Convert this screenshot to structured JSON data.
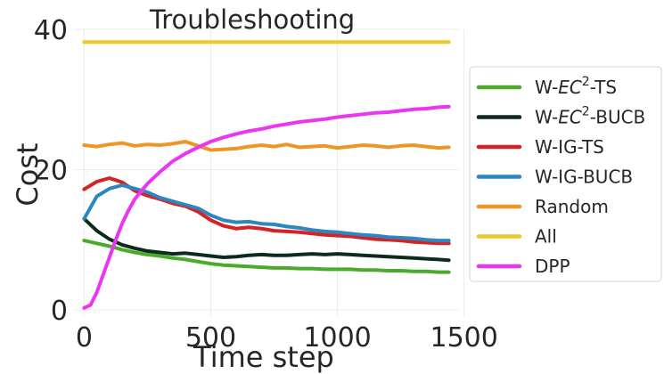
{
  "chart_data": {
    "type": "line",
    "title": "Troubleshooting",
    "xlabel": "Time step",
    "ylabel": "Cost",
    "xlim": [
      -40,
      1480
    ],
    "ylim": [
      -1,
      40
    ],
    "xticks": [
      0,
      500,
      1000,
      1500
    ],
    "yticks": [
      0,
      20,
      40
    ],
    "grid": true,
    "legend_position": "right, outside plot",
    "series": [
      {
        "name": "W-EC2-TS",
        "legend_base": "W-",
        "legend_italic": "EC",
        "legend_sup": "2",
        "legend_suffix": "-TS",
        "color": "#4aaa2a",
        "x": [
          0,
          50,
          100,
          150,
          200,
          250,
          300,
          350,
          400,
          450,
          500,
          550,
          600,
          650,
          700,
          750,
          800,
          850,
          900,
          950,
          1000,
          1050,
          1100,
          1150,
          1200,
          1250,
          1300,
          1350,
          1400,
          1440
        ],
        "y": [
          9.9,
          9.5,
          9.1,
          8.6,
          8.2,
          7.9,
          7.7,
          7.4,
          7.2,
          6.9,
          6.6,
          6.4,
          6.3,
          6.2,
          6.1,
          6.0,
          6.0,
          5.9,
          5.9,
          5.8,
          5.8,
          5.8,
          5.7,
          5.7,
          5.6,
          5.6,
          5.5,
          5.5,
          5.4,
          5.4
        ]
      },
      {
        "name": "W-EC2-BUCB",
        "legend_base": "W-",
        "legend_italic": "EC",
        "legend_sup": "2",
        "legend_suffix": "-BUCB",
        "color": "#0b2b1d",
        "x": [
          0,
          50,
          100,
          150,
          200,
          250,
          300,
          350,
          400,
          450,
          500,
          550,
          600,
          650,
          700,
          750,
          800,
          850,
          900,
          950,
          1000,
          1050,
          1100,
          1150,
          1200,
          1250,
          1300,
          1350,
          1400,
          1440
        ],
        "y": [
          13.0,
          11.3,
          10.1,
          9.3,
          8.8,
          8.4,
          8.2,
          8.0,
          8.1,
          7.9,
          7.7,
          7.5,
          7.6,
          7.8,
          7.9,
          7.8,
          7.8,
          7.9,
          8.0,
          7.9,
          8.0,
          7.9,
          7.8,
          7.7,
          7.6,
          7.5,
          7.4,
          7.3,
          7.2,
          7.1
        ]
      },
      {
        "name": "W-IG-TS",
        "color": "#d62222",
        "x": [
          0,
          50,
          100,
          150,
          200,
          250,
          300,
          350,
          400,
          450,
          500,
          550,
          600,
          650,
          700,
          750,
          800,
          850,
          900,
          950,
          1000,
          1050,
          1100,
          1150,
          1200,
          1250,
          1300,
          1350,
          1400,
          1440
        ],
        "y": [
          17.2,
          18.3,
          18.8,
          18.2,
          17.0,
          16.3,
          15.8,
          15.2,
          14.8,
          14.0,
          12.8,
          12.0,
          11.6,
          11.8,
          11.6,
          11.3,
          11.2,
          11.1,
          10.9,
          10.7,
          10.6,
          10.5,
          10.3,
          10.1,
          10.0,
          9.9,
          9.7,
          9.6,
          9.5,
          9.5
        ]
      },
      {
        "name": "W-IG-BUCB",
        "color": "#2c86c0",
        "x": [
          0,
          50,
          100,
          150,
          200,
          250,
          300,
          350,
          400,
          450,
          500,
          550,
          600,
          650,
          700,
          750,
          800,
          850,
          900,
          950,
          1000,
          1050,
          1100,
          1150,
          1200,
          1250,
          1300,
          1350,
          1400,
          1440
        ],
        "y": [
          13.0,
          16.2,
          17.3,
          17.8,
          17.3,
          16.8,
          16.0,
          15.5,
          15.0,
          14.5,
          13.5,
          12.8,
          12.5,
          12.6,
          12.3,
          12.2,
          11.9,
          11.7,
          11.4,
          11.2,
          11.1,
          10.9,
          10.7,
          10.6,
          10.4,
          10.3,
          10.2,
          10.0,
          9.9,
          9.9
        ]
      },
      {
        "name": "Random",
        "color": "#ef9526",
        "x": [
          0,
          50,
          100,
          150,
          200,
          250,
          300,
          350,
          400,
          450,
          500,
          550,
          600,
          650,
          700,
          750,
          800,
          850,
          900,
          950,
          1000,
          1050,
          1100,
          1150,
          1200,
          1250,
          1300,
          1350,
          1400,
          1440
        ],
        "y": [
          23.5,
          23.3,
          23.6,
          23.8,
          23.4,
          23.6,
          23.5,
          23.7,
          24.0,
          23.4,
          22.8,
          22.9,
          23.0,
          23.3,
          23.5,
          23.3,
          23.6,
          23.2,
          23.3,
          23.4,
          23.1,
          23.3,
          23.5,
          23.4,
          23.2,
          23.4,
          23.5,
          23.3,
          23.1,
          23.2
        ]
      },
      {
        "name": "All",
        "color": "#ecc82a",
        "x": [
          0,
          100,
          200,
          300,
          400,
          500,
          600,
          700,
          800,
          900,
          1000,
          1100,
          1200,
          1300,
          1400,
          1440
        ],
        "y": [
          38.2,
          38.2,
          38.2,
          38.2,
          38.2,
          38.2,
          38.2,
          38.2,
          38.2,
          38.2,
          38.2,
          38.2,
          38.2,
          38.2,
          38.2,
          38.2
        ]
      },
      {
        "name": "DPP",
        "color": "#ea36f0",
        "x": [
          0,
          25,
          50,
          75,
          100,
          125,
          150,
          175,
          200,
          250,
          300,
          350,
          400,
          450,
          500,
          550,
          600,
          650,
          700,
          750,
          800,
          850,
          900,
          950,
          1000,
          1050,
          1100,
          1150,
          1200,
          1250,
          1300,
          1350,
          1400,
          1440
        ],
        "y": [
          0.3,
          0.7,
          2.5,
          5.0,
          7.5,
          10.0,
          12.3,
          14.2,
          15.8,
          18.0,
          19.7,
          21.2,
          22.3,
          23.2,
          24.0,
          24.6,
          25.1,
          25.5,
          25.8,
          26.2,
          26.5,
          26.8,
          27.0,
          27.2,
          27.5,
          27.7,
          27.9,
          28.1,
          28.2,
          28.4,
          28.6,
          28.7,
          28.9,
          29.0
        ]
      }
    ]
  }
}
